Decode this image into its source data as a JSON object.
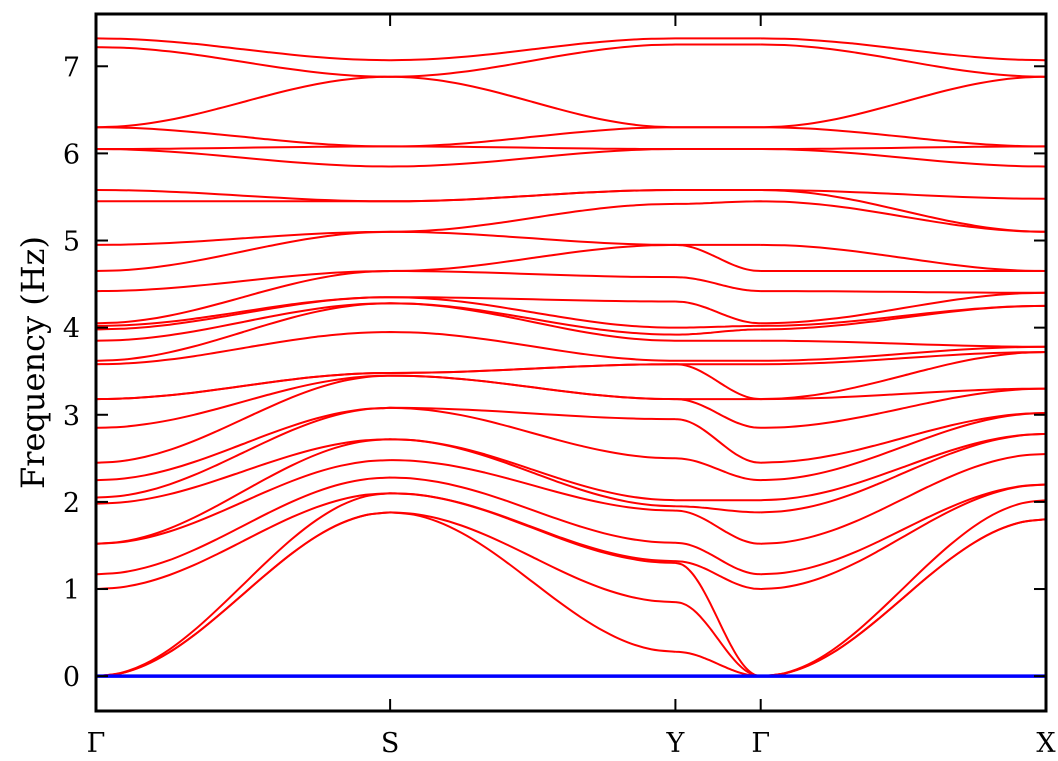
{
  "chart_data": {
    "type": "line",
    "ylabel": "Frequency (Hz)",
    "xlabel": "",
    "ylim": [
      -0.4,
      7.6
    ],
    "y_ticks": [
      0,
      1,
      2,
      3,
      4,
      5,
      6,
      7
    ],
    "y_tick_labels": [
      "0",
      "1",
      "2",
      "3",
      "4",
      "5",
      "6",
      "7"
    ],
    "x_ticks": [
      {
        "label": "Γ",
        "pos": 0.0
      },
      {
        "label": "S",
        "pos": 1.0
      },
      {
        "label": "Y",
        "pos": 1.97
      },
      {
        "label": "Γ",
        "pos": 2.26
      },
      {
        "label": "X",
        "pos": 3.23
      }
    ],
    "xlim": [
      0,
      3.23
    ],
    "grid": false,
    "legend": "none",
    "colors": {
      "bands": "#ff0000",
      "zero_line": "#0000ff"
    },
    "series": [
      {
        "values": [
          0.0,
          0.0,
          0.0,
          0.0,
          0.0
        ]
      },
      {
        "values": [
          0.0,
          1.88,
          0.28,
          0.0,
          1.8
        ]
      },
      {
        "values": [
          0.0,
          1.88,
          0.85,
          0.0,
          1.8
        ]
      },
      {
        "values": [
          0.0,
          2.1,
          1.3,
          0.0,
          2.02
        ]
      },
      {
        "values": [
          1.0,
          2.1,
          1.32,
          1.0,
          2.2
        ]
      },
      {
        "values": [
          1.17,
          2.28,
          1.53,
          1.17,
          2.2
        ]
      },
      {
        "values": [
          1.52,
          2.48,
          1.9,
          1.52,
          2.55
        ]
      },
      {
        "values": [
          1.52,
          2.72,
          1.95,
          1.88,
          2.78
        ]
      },
      {
        "values": [
          1.98,
          2.72,
          2.02,
          2.02,
          2.78
        ]
      },
      {
        "values": [
          2.05,
          3.08,
          2.5,
          2.25,
          3.02
        ]
      },
      {
        "values": [
          2.25,
          3.08,
          2.95,
          2.45,
          3.02
        ]
      },
      {
        "values": [
          2.45,
          3.45,
          3.18,
          2.85,
          3.3
        ]
      },
      {
        "values": [
          2.85,
          3.45,
          3.18,
          3.18,
          3.3
        ]
      },
      {
        "values": [
          3.18,
          3.48,
          3.58,
          3.18,
          3.72
        ]
      },
      {
        "values": [
          3.18,
          3.48,
          3.58,
          3.58,
          3.72
        ]
      },
      {
        "values": [
          3.58,
          3.95,
          3.62,
          3.62,
          3.78
        ]
      },
      {
        "values": [
          3.62,
          4.28,
          3.85,
          3.85,
          3.78
        ]
      },
      {
        "values": [
          3.85,
          4.28,
          3.92,
          3.98,
          4.25
        ]
      },
      {
        "values": [
          3.98,
          4.35,
          4.0,
          4.02,
          4.25
        ]
      },
      {
        "values": [
          4.02,
          4.35,
          4.3,
          4.05,
          4.4
        ]
      },
      {
        "values": [
          4.05,
          4.65,
          4.58,
          4.42,
          4.4
        ]
      },
      {
        "values": [
          4.42,
          4.65,
          4.95,
          4.65,
          4.65
        ]
      },
      {
        "values": [
          4.65,
          5.1,
          4.95,
          4.95,
          4.65
        ]
      },
      {
        "values": [
          4.95,
          5.1,
          5.42,
          5.45,
          5.1
        ]
      },
      {
        "values": [
          5.45,
          5.45,
          5.58,
          5.58,
          5.1
        ]
      },
      {
        "values": [
          5.58,
          5.45,
          5.58,
          5.58,
          5.48
        ]
      },
      {
        "values": [
          6.05,
          5.85,
          6.05,
          6.05,
          5.85
        ]
      },
      {
        "values": [
          6.05,
          6.08,
          6.05,
          6.05,
          6.08
        ]
      },
      {
        "values": [
          6.3,
          6.08,
          6.3,
          6.3,
          6.08
        ]
      },
      {
        "values": [
          6.3,
          6.88,
          6.3,
          6.3,
          6.88
        ]
      },
      {
        "values": [
          7.22,
          6.88,
          7.25,
          7.25,
          6.88
        ]
      },
      {
        "values": [
          7.32,
          7.07,
          7.32,
          7.32,
          7.07
        ]
      }
    ]
  }
}
